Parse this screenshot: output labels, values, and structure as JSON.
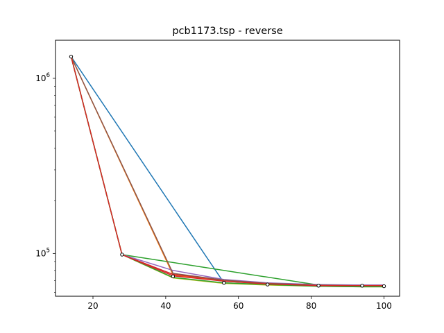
{
  "chart_data": {
    "type": "line",
    "title": "pcb1173.tsp - reverse",
    "xlabel": "",
    "ylabel": "",
    "xlim": [
      9.7,
      104.3
    ],
    "ylim": [
      57000,
      1650000
    ],
    "yscale": "log",
    "grid": false,
    "legend": "none",
    "x_ticks": [
      {
        "value": 20,
        "label": "20"
      },
      {
        "value": 40,
        "label": "40"
      },
      {
        "value": 60,
        "label": "60"
      },
      {
        "value": 80,
        "label": "80"
      },
      {
        "value": 100,
        "label": "100"
      }
    ],
    "y_ticks": [
      {
        "value": 100000,
        "label": "10",
        "exp": "5"
      },
      {
        "value": 1000000,
        "label": "10",
        "exp": "6"
      }
    ],
    "series": [
      {
        "color": "#1f77b4",
        "x": [
          14,
          56,
          68,
          82,
          94,
          100
        ],
        "y": [
          1330000,
          68000,
          66500,
          65500,
          65500,
          65500
        ]
      },
      {
        "color": "#ff7f0e",
        "x": [
          14,
          42,
          56,
          68,
          82,
          94,
          100
        ],
        "y": [
          1330000,
          75500,
          69500,
          67000,
          66000,
          65500,
          65500
        ]
      },
      {
        "color": "#2ca02c",
        "x": [
          14,
          28,
          82,
          94,
          100
        ],
        "y": [
          1330000,
          98500,
          66000,
          65000,
          64500
        ]
      },
      {
        "color": "#d62728",
        "x": [
          14,
          28,
          42,
          56,
          68,
          82,
          94,
          100
        ],
        "y": [
          1330000,
          98500,
          76000,
          70500,
          67500,
          66000,
          66000,
          66000
        ]
      },
      {
        "color": "#9467bd",
        "x": [
          14,
          28,
          42,
          56,
          68,
          82,
          94,
          100
        ],
        "y": [
          1330000,
          98500,
          80000,
          71000,
          68000,
          66500,
          66000,
          66000
        ]
      },
      {
        "color": "#8c564b",
        "x": [
          14,
          42,
          56,
          68,
          82,
          94,
          100
        ],
        "y": [
          1330000,
          77000,
          70500,
          67500,
          66000,
          65500,
          65500
        ]
      },
      {
        "color": "#bcbd22",
        "x": [
          14,
          28,
          42,
          56,
          68,
          82,
          94,
          100
        ],
        "y": [
          1330000,
          98500,
          72500,
          67500,
          66000,
          65000,
          64500,
          64500
        ]
      },
      {
        "color": "#2ca02c",
        "x": [
          14,
          28,
          42,
          56,
          68,
          82,
          94,
          100
        ],
        "y": [
          1330000,
          98500,
          73000,
          68000,
          66500,
          65000,
          64500,
          64500
        ]
      },
      {
        "color": "#d62728",
        "x": [
          14,
          28,
          42,
          56,
          68,
          82,
          94,
          100
        ],
        "y": [
          1330000,
          98500,
          74500,
          69500,
          67000,
          65500,
          65500,
          65500
        ]
      }
    ],
    "markers": {
      "x": [
        14,
        28,
        42,
        56,
        68,
        82,
        94,
        100
      ],
      "y": [
        1330000,
        98500,
        74000,
        68000,
        66500,
        65500,
        65500,
        65000
      ]
    }
  }
}
